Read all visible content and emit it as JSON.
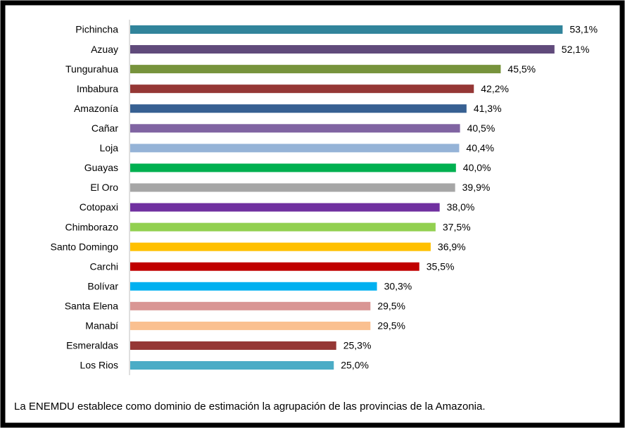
{
  "chart_data": {
    "type": "barh",
    "categories": [
      "Pichincha",
      "Azuay",
      "Tungurahua",
      "Imbabura",
      "Amazonía",
      "Cañar",
      "Loja",
      "Guayas",
      "El Oro",
      "Cotopaxi",
      "Chimborazo",
      "Santo Domingo",
      "Carchi",
      "Bolívar",
      "Santa Elena",
      "Manabí",
      "Esmeraldas",
      "Los Rios"
    ],
    "values": [
      53.1,
      52.1,
      45.5,
      42.2,
      41.3,
      40.5,
      40.4,
      40.0,
      39.9,
      38.0,
      37.5,
      36.9,
      35.5,
      30.3,
      29.5,
      29.5,
      25.3,
      25.0
    ],
    "value_labels": [
      "53,1%",
      "52,1%",
      "45,5%",
      "42,2%",
      "41,3%",
      "40,5%",
      "40,4%",
      "40,0%",
      "39,9%",
      "38,0%",
      "37,5%",
      "36,9%",
      "35,5%",
      "30,3%",
      "29,5%",
      "29,5%",
      "25,3%",
      "25,0%"
    ],
    "colors": [
      "#31849b",
      "#604a7b",
      "#77933c",
      "#953735",
      "#376092",
      "#8064a2",
      "#95b3d7",
      "#00b050",
      "#a6a6a6",
      "#7030a0",
      "#92d050",
      "#ffc000",
      "#c00000",
      "#00b0f0",
      "#d99694",
      "#fac090",
      "#953735",
      "#4bacc6"
    ],
    "note": "La ENEMDU establece como dominio de estimación la agrupación de las provincias de la Amazonia."
  }
}
